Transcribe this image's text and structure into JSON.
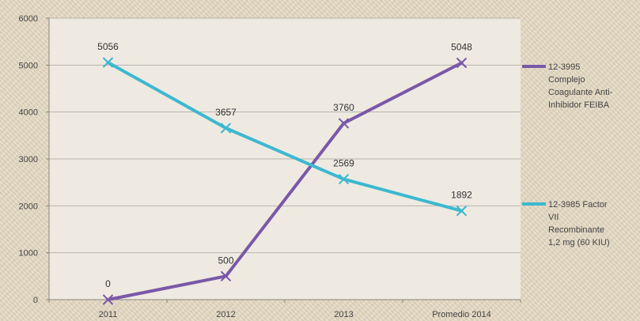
{
  "chart_data": {
    "type": "line",
    "categories": [
      "2011",
      "2012",
      "2013",
      "Promedio 2014"
    ],
    "ylim": [
      0,
      6000
    ],
    "yticks": [
      0,
      1000,
      2000,
      3000,
      4000,
      5000,
      6000
    ],
    "grid": true,
    "legend_position": "right",
    "series": [
      {
        "name": "12-3995 Complejo Coagulante Anti-Inhibidor FEIBA",
        "legend_lines": [
          "12-3995",
          "Complejo",
          "Coagulante Anti-",
          "Inhibidor FEIBA"
        ],
        "color": "#7a58a8",
        "values": [
          0,
          500,
          3760,
          5048
        ],
        "labels": [
          "0",
          "500",
          "3760",
          "5048"
        ]
      },
      {
        "name": "12-3985 Factor VII Recombinante 1,2 mg (60 KIU)",
        "legend_lines": [
          "12-3985 Factor",
          "VII",
          "Recombinante",
          "1,2 mg (60 KIU)"
        ],
        "color": "#3db8cf",
        "values": [
          5056,
          3657,
          2569,
          1892
        ],
        "labels": [
          "5056",
          "3657",
          "2569",
          "1892"
        ]
      }
    ]
  }
}
